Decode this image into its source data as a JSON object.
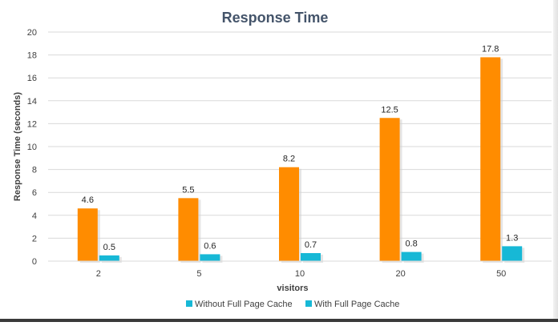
{
  "chart_data": {
    "type": "bar",
    "title": "Response Time",
    "xlabel": "visitors",
    "ylabel": "Response Time (seconds)",
    "categories": [
      "2",
      "5",
      "10",
      "20",
      "50"
    ],
    "ylim": [
      0,
      20
    ],
    "yticks": [
      "0",
      "2",
      "4",
      "6",
      "8",
      "10",
      "12",
      "14",
      "16",
      "18",
      "20"
    ],
    "grid": true,
    "legend_position": "bottom",
    "series": [
      {
        "name": "Without Full Page Cache",
        "values": [
          4.6,
          5.5,
          8.2,
          12.5,
          17.8
        ],
        "labels": [
          "4.6",
          "5.5",
          "8.2",
          "12.5",
          "17.8"
        ],
        "color": "#FF8C00"
      },
      {
        "name": "With Full Page Cache",
        "values": [
          0.5,
          0.6,
          0.7,
          0.8,
          1.3
        ],
        "labels": [
          "0.5",
          "0.6",
          "0.7",
          "0.8",
          "1.3"
        ],
        "color": "#17B8D6"
      }
    ],
    "legend_swatch_colors": [
      "#17B8D6",
      "#17B8D6"
    ]
  }
}
